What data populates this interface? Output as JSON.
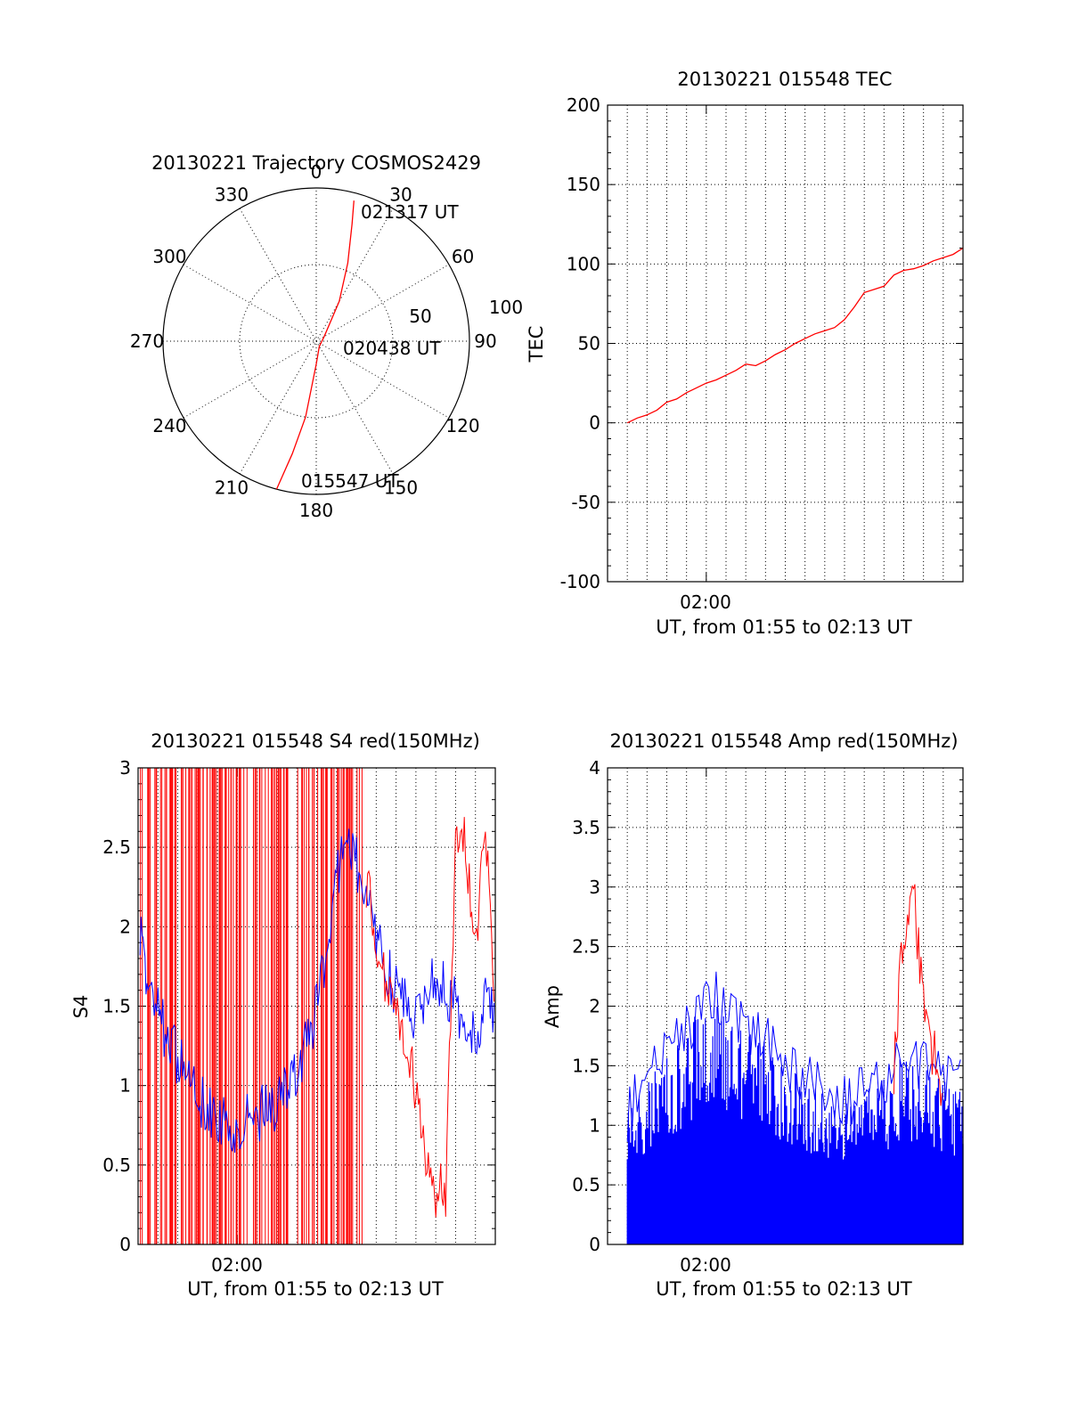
{
  "colors": {
    "red": "#ff0000",
    "blue": "#0000ff",
    "axis": "#000000"
  },
  "chart_data": [
    {
      "id": "trajectory",
      "type": "polar",
      "title": "20130221 Trajectory COSMOS2429",
      "azimuth_labels": [
        "0",
        "30",
        "60",
        "90",
        "120",
        "150",
        "180",
        "210",
        "240",
        "270",
        "300",
        "330"
      ],
      "radial_labels": [
        "50",
        "100"
      ],
      "rmax": 100,
      "trajectory": [
        {
          "az": 195,
          "r": 100
        },
        {
          "az": 192,
          "r": 75
        },
        {
          "az": 188,
          "r": 50
        },
        {
          "az": 180,
          "r": 15
        },
        {
          "az": 150,
          "r": 4
        },
        {
          "az": 60,
          "r": 6
        },
        {
          "az": 30,
          "r": 30
        },
        {
          "az": 22,
          "r": 55
        },
        {
          "az": 17,
          "r": 80
        },
        {
          "az": 15,
          "r": 95
        }
      ],
      "annotations": [
        {
          "text": "021317 UT"
        },
        {
          "text": "020438 UT"
        },
        {
          "text": "015547 UT"
        }
      ]
    },
    {
      "id": "tec",
      "type": "line",
      "title": "20130221 015548 TEC",
      "xlabel": "UT, from 01:55 to 02:13 UT",
      "ylabel": "TEC",
      "xtick_label": "02:00",
      "yticks": [
        "200",
        "150",
        "100",
        "50",
        "0",
        "-50",
        "-100"
      ],
      "ylim": [
        -100,
        200
      ],
      "series": [
        {
          "color": "red",
          "x": [
            1.0,
            1.5,
            2.0,
            2.5,
            3.0,
            3.5,
            4.0,
            4.5,
            5.0,
            5.5,
            6.0,
            6.5,
            7.0,
            7.5,
            8.0,
            8.5,
            9.0,
            9.5,
            10.0,
            10.5,
            11.0,
            11.5,
            12.0,
            12.5,
            13.0,
            13.5,
            14.0,
            14.5,
            15.0,
            15.5,
            16.0,
            16.5,
            17.0,
            17.5,
            18.0
          ],
          "y": [
            0,
            3,
            5,
            8,
            13,
            15,
            19,
            22,
            25,
            27,
            30,
            33,
            37,
            36,
            39,
            43,
            46,
            50,
            53,
            56,
            58,
            60,
            65,
            73,
            82,
            84,
            86,
            93,
            96,
            97,
            99,
            102,
            104,
            106,
            110
          ]
        }
      ]
    },
    {
      "id": "s4",
      "type": "line",
      "title": "20130221 015548 S4 red(150MHz)",
      "xlabel": "UT, from 01:55 to 02:13 UT",
      "ylabel": "S4",
      "xtick_label": "02:00",
      "yticks": [
        "3",
        "2.5",
        "2",
        "1.5",
        "1",
        "0.5",
        "0"
      ],
      "ylim": [
        0,
        3
      ],
      "series": [
        {
          "color": "blue",
          "x": [
            0.1,
            0.5,
            1.0,
            1.5,
            2.0,
            2.5,
            3.0,
            3.5,
            4.0,
            4.5,
            5.0,
            5.5,
            6.0,
            6.5,
            7.0,
            7.5,
            8.0,
            8.5,
            9.0,
            9.5,
            10.0,
            10.5,
            11.0,
            11.5,
            12.0,
            12.5,
            13.0,
            13.5,
            14.0,
            14.5,
            15.0,
            15.5,
            16.0,
            16.5,
            17.0,
            17.5,
            18.0
          ],
          "y": [
            2.0,
            1.6,
            1.45,
            1.3,
            1.15,
            1.05,
            0.95,
            0.85,
            0.8,
            0.75,
            0.75,
            0.78,
            0.8,
            0.85,
            0.9,
            1.0,
            1.1,
            1.25,
            1.5,
            1.85,
            2.3,
            2.55,
            2.4,
            2.2,
            1.9,
            1.75,
            1.6,
            1.5,
            1.45,
            1.6,
            1.7,
            1.6,
            1.5,
            1.4,
            1.35,
            1.5,
            1.45
          ]
        },
        {
          "color": "red",
          "x": [
            11.5,
            12.0,
            12.5,
            13.0,
            13.5,
            14.0,
            14.5,
            15.0,
            15.5,
            16.0,
            16.5,
            17.0,
            17.5,
            18.0
          ],
          "y": [
            2.3,
            1.9,
            1.6,
            1.4,
            1.2,
            1.0,
            0.55,
            0.35,
            0.35,
            2.6,
            2.5,
            1.8,
            2.6,
            1.5
          ]
        }
      ]
    },
    {
      "id": "amp",
      "type": "line",
      "title": "20130221 015548 Amp red(150MHz)",
      "xlabel": "UT, from 01:55 to 02:13 UT",
      "ylabel": "Amp",
      "xtick_label": "02:00",
      "yticks": [
        "4",
        "3.5",
        "3",
        "2.5",
        "2",
        "1.5",
        "1",
        "0.5",
        "0"
      ],
      "ylim": [
        0,
        4
      ],
      "series": [
        {
          "color": "blue",
          "x": [
            1.0,
            2.0,
            3.0,
            4.0,
            5.0,
            6.0,
            7.0,
            8.0,
            9.0,
            10.0,
            11.0,
            12.0,
            13.0,
            14.0,
            15.0,
            16.0,
            17.0,
            18.0
          ],
          "y": [
            1.1,
            1.4,
            1.6,
            1.8,
            2.1,
            2.0,
            1.8,
            1.7,
            1.5,
            1.4,
            1.3,
            1.2,
            1.3,
            1.4,
            1.6,
            1.5,
            1.4,
            1.3
          ]
        },
        {
          "color": "red",
          "x": [
            14.5,
            15.0,
            15.5,
            16.0,
            16.5,
            17.0
          ],
          "y": [
            1.5,
            2.6,
            3.0,
            2.0,
            1.6,
            1.3
          ]
        }
      ]
    }
  ]
}
